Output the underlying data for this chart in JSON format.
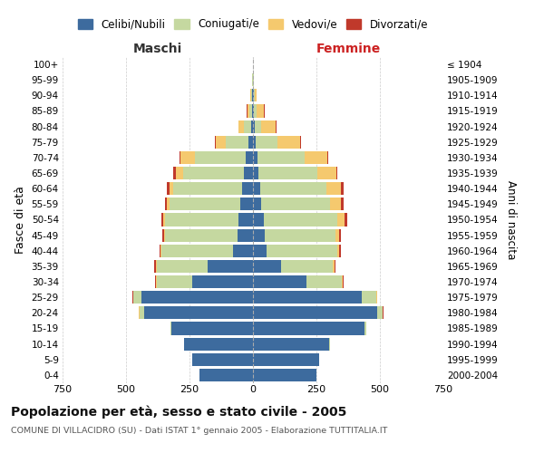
{
  "age_groups": [
    "0-4",
    "5-9",
    "10-14",
    "15-19",
    "20-24",
    "25-29",
    "30-34",
    "35-39",
    "40-44",
    "45-49",
    "50-54",
    "55-59",
    "60-64",
    "65-69",
    "70-74",
    "75-79",
    "80-84",
    "85-89",
    "90-94",
    "95-99",
    "100+"
  ],
  "birth_years": [
    "2000-2004",
    "1995-1999",
    "1990-1994",
    "1985-1989",
    "1980-1984",
    "1975-1979",
    "1970-1974",
    "1965-1969",
    "1960-1964",
    "1955-1959",
    "1950-1954",
    "1945-1949",
    "1940-1944",
    "1935-1939",
    "1930-1934",
    "1925-1929",
    "1920-1924",
    "1915-1919",
    "1910-1914",
    "1905-1909",
    "≤ 1904"
  ],
  "male_celibi": [
    210,
    240,
    270,
    320,
    430,
    440,
    240,
    180,
    80,
    62,
    58,
    50,
    43,
    35,
    30,
    18,
    6,
    5,
    3,
    1,
    0
  ],
  "male_coniugati": [
    0,
    0,
    2,
    5,
    18,
    30,
    140,
    200,
    280,
    285,
    290,
    280,
    270,
    240,
    200,
    90,
    30,
    10,
    5,
    2,
    0
  ],
  "male_vedovi": [
    0,
    0,
    0,
    0,
    1,
    2,
    2,
    3,
    3,
    3,
    5,
    8,
    15,
    30,
    55,
    40,
    20,
    8,
    4,
    1,
    0
  ],
  "male_divorziati": [
    0,
    0,
    0,
    0,
    1,
    2,
    3,
    5,
    6,
    8,
    8,
    10,
    12,
    8,
    6,
    2,
    1,
    1,
    0,
    0,
    0
  ],
  "female_celibi": [
    250,
    260,
    300,
    440,
    490,
    430,
    210,
    110,
    52,
    45,
    42,
    32,
    28,
    22,
    18,
    12,
    6,
    5,
    3,
    1,
    0
  ],
  "female_coniugati": [
    0,
    0,
    2,
    5,
    20,
    55,
    140,
    205,
    280,
    280,
    290,
    270,
    260,
    230,
    185,
    85,
    25,
    8,
    4,
    1,
    0
  ],
  "female_vedovi": [
    0,
    0,
    0,
    0,
    2,
    3,
    3,
    5,
    8,
    15,
    30,
    45,
    60,
    75,
    90,
    90,
    60,
    30,
    8,
    2,
    0
  ],
  "female_divorziati": [
    0,
    0,
    0,
    0,
    1,
    2,
    4,
    6,
    7,
    8,
    8,
    10,
    8,
    5,
    3,
    2,
    2,
    2,
    1,
    0,
    0
  ],
  "color_celibi": "#3d6b9e",
  "color_coniugati": "#c5d8a0",
  "color_vedovi": "#f5c96e",
  "color_divorziati": "#c0392b",
  "title": "Popolazione per età, sesso e stato civile - 2005",
  "subtitle": "COMUNE DI VILLACIDRO (SU) - Dati ISTAT 1° gennaio 2005 - Elaborazione TUTTITALIA.IT",
  "ylabel_left": "Fasce di età",
  "ylabel_right": "Anni di nascita",
  "xlabel_left": "Maschi",
  "xlabel_right": "Femmine",
  "xlim": 750,
  "bg_color": "#ffffff",
  "grid_color": "#cccccc",
  "legend_labels": [
    "Celibi/Nubili",
    "Coniugati/e",
    "Vedovi/e",
    "Divorzati/e"
  ]
}
